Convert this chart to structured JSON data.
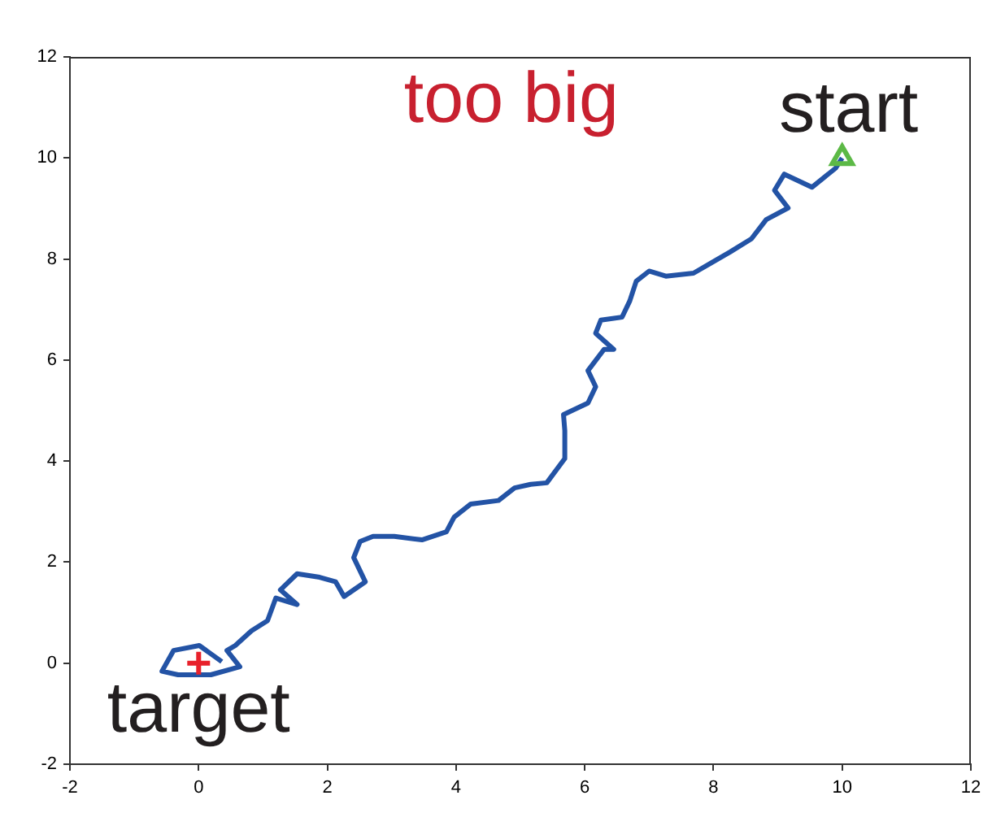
{
  "chart_data": {
    "type": "line",
    "xlim": [
      -2,
      12
    ],
    "ylim": [
      -2,
      12
    ],
    "xticks": [
      -2,
      0,
      2,
      4,
      6,
      8,
      10,
      12
    ],
    "yticks": [
      -2,
      0,
      2,
      4,
      6,
      8,
      10,
      12
    ],
    "grid": false,
    "legend": false,
    "annotations": [
      "too big",
      {
        "text": "start",
        "x": 10,
        "y": 10
      },
      {
        "text": "target",
        "x": 0,
        "y": 0
      }
    ],
    "series": [
      {
        "color": "#2353a5",
        "marker": "none",
        "x": [
          10,
          9.9,
          9.53,
          9.1,
          8.95,
          9.16,
          8.82,
          8.59,
          8.26,
          7.96,
          7.69,
          7.26,
          7,
          6.8,
          6.7,
          6.58,
          6.25,
          6.17,
          6.45,
          6.3,
          6.05,
          6.17,
          6.05,
          5.67,
          5.69,
          5.69,
          5.41,
          5.16,
          4.91,
          4.66,
          4.23,
          3.97,
          3.85,
          3.47,
          3.04,
          2.71,
          2.51,
          2.41,
          2.59,
          2.26,
          2.13,
          1.88,
          1.53,
          1.27,
          1.53,
          1.2,
          1.07,
          0.82,
          0.57,
          0.44,
          0.64,
          0.19,
          -0.32,
          -0.57,
          -0.39,
          0.01,
          0.36
        ],
        "values": [
          10,
          9.8,
          9.42,
          9.68,
          9.36,
          9.01,
          8.78,
          8.4,
          8.14,
          7.92,
          7.72,
          7.66,
          7.76,
          7.56,
          7.17,
          6.85,
          6.79,
          6.53,
          6.21,
          6.21,
          5.79,
          5.47,
          5.15,
          4.92,
          4.6,
          4.05,
          3.57,
          3.54,
          3.47,
          3.22,
          3.15,
          2.89,
          2.6,
          2.44,
          2.51,
          2.51,
          2.41,
          2.09,
          1.61,
          1.32,
          1.61,
          1.7,
          1.77,
          1.45,
          1.16,
          1.29,
          0.84,
          0.64,
          0.35,
          0.25,
          -0.07,
          -0.23,
          -0.23,
          -0.16,
          0.25,
          0.35,
          0.03
        ]
      },
      {
        "type": "scatter",
        "color": "#5cb946",
        "marker": "triangle",
        "x": [
          10
        ],
        "values": [
          10
        ]
      },
      {
        "type": "scatter",
        "color": "#e8212b",
        "marker": "cross",
        "x": [
          0
        ],
        "values": [
          0
        ]
      }
    ]
  }
}
